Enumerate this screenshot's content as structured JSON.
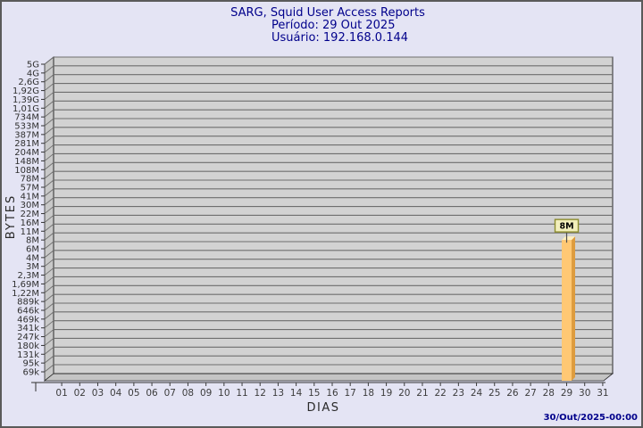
{
  "header": {
    "title": "SARG, Squid User Access Reports",
    "period": "Período: 29 Out 2025",
    "user": "Usuário: 192.168.0.144"
  },
  "footer": {
    "timestamp": "30/Out/2025-00:00"
  },
  "chart_data": {
    "type": "bar",
    "title": "SARG, Squid User Access Reports",
    "subtitle": "Período: 29 Out 2025",
    "annotation": "Usuário: 192.168.0.144",
    "xlabel": "DIAS",
    "ylabel": "BYTES",
    "legend_position": "none",
    "grid": "horizontal",
    "style_3d": true,
    "categories": [
      "01",
      "02",
      "03",
      "04",
      "05",
      "06",
      "07",
      "08",
      "09",
      "10",
      "11",
      "12",
      "13",
      "14",
      "15",
      "16",
      "17",
      "18",
      "19",
      "20",
      "21",
      "22",
      "23",
      "24",
      "25",
      "26",
      "27",
      "28",
      "29",
      "30",
      "31"
    ],
    "values": [
      0,
      0,
      0,
      0,
      0,
      0,
      0,
      0,
      0,
      0,
      0,
      0,
      0,
      0,
      0,
      0,
      0,
      0,
      0,
      0,
      0,
      0,
      0,
      0,
      0,
      0,
      0,
      0,
      8000000,
      0,
      0
    ],
    "bars": [
      {
        "category": "29",
        "value": 8000000,
        "value_label": "8M",
        "y_tick": "8M"
      }
    ],
    "y_tick_labels": [
      "5G",
      "4G",
      "2,6G",
      "1,92G",
      "1,39G",
      "1,01G",
      "734M",
      "533M",
      "387M",
      "281M",
      "204M",
      "148M",
      "108M",
      "78M",
      "57M",
      "41M",
      "30M",
      "22M",
      "16M",
      "11M",
      "8M",
      "6M",
      "4M",
      "3M",
      "2,3M",
      "1,69M",
      "1,22M",
      "889k",
      "646k",
      "469k",
      "341k",
      "247k",
      "180k",
      "131k",
      "95k",
      "69k"
    ],
    "y_axis_range": [
      "69k",
      "5G"
    ],
    "colors": {
      "page_bg": "#E4E4F4",
      "title_text": "#00008B",
      "plot_bg": "#D2D2D2",
      "wall": "#C8C8C8",
      "floor": "#C4C4C4",
      "gridline": "#6E6E6E",
      "frame_stroke": "#2B2B2B",
      "tick_text": "#303030",
      "day_text": "#3C3C3C",
      "bar_front": "#FFC874",
      "bar_side": "#DE9C3E",
      "bar_top": "#FFF0C0",
      "flag_bg": "#F2EFBC",
      "flag_border": "#8C8C2E",
      "flag_text": "#000000",
      "timestamp_text": "#00008B"
    }
  }
}
